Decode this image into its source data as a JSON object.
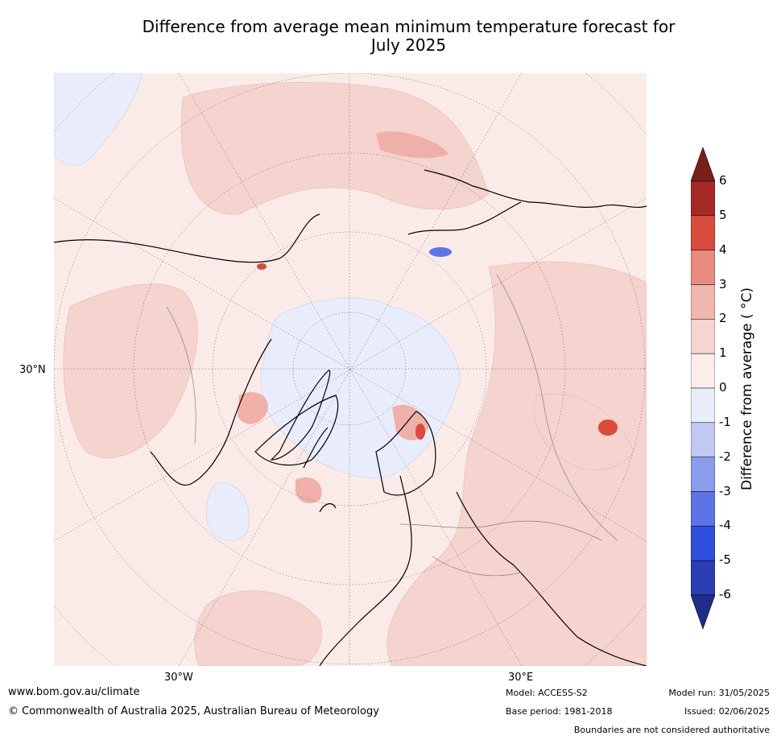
{
  "title_line1": "Difference from average mean minimum temperature forecast for",
  "title_line2": "July 2025",
  "map": {
    "projection": "north-polar-stereographic",
    "lat_label": "30°N",
    "lon_labels": [
      "30°W",
      "30°E"
    ],
    "background_anomaly_color": "#fbebe8"
  },
  "colorbar": {
    "label": "Difference from average ( °C)",
    "ticks": [
      "6",
      "5",
      "4",
      "3",
      "2",
      "1",
      "0",
      "-1",
      "-2",
      "-3",
      "-4",
      "-5",
      "-6"
    ],
    "colors": [
      "#7b1f1a",
      "#a62a24",
      "#d94b3c",
      "#e88a7e",
      "#f0b7ae",
      "#f6d4cf",
      "#fcecea",
      "#e8ecfb",
      "#c1c9f2",
      "#8a9cec",
      "#5d74e6",
      "#2f4fdd",
      "#2a3db5",
      "#1f2d8a"
    ]
  },
  "footer": {
    "url": "www.bom.gov.au/climate",
    "copyright": "© Commonwealth of Australia 2025, Australian Bureau of Meteorology",
    "model": "Model: ACCESS-S2",
    "base_period": "Base period: 1981-2018",
    "model_run": "Model run: 31/05/2025",
    "issued": "Issued: 02/06/2025",
    "boundaries": "Boundaries are not considered authoritative"
  }
}
